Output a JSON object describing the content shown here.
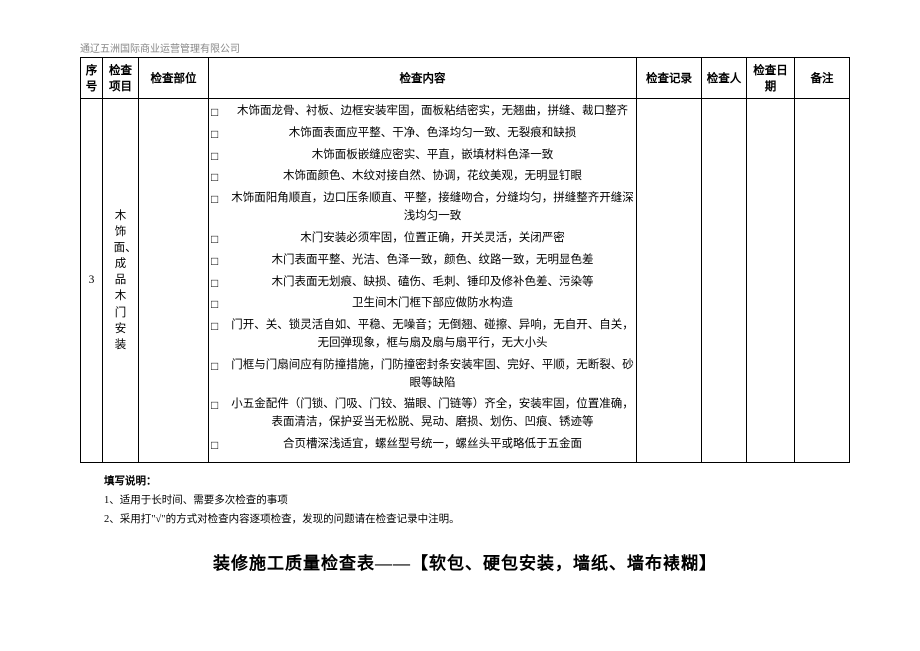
{
  "company": "通辽五洲国际商业运营管理有限公司",
  "headers": {
    "seq": "序号",
    "item": "检查项目",
    "part": "检查部位",
    "content": "检查内容",
    "record": "检查记录",
    "inspector": "检查人",
    "date": "检查日期",
    "remark": "备注"
  },
  "row": {
    "seq": "3",
    "item": "木饰面、成品木门安装",
    "part": "",
    "record": "",
    "inspector": "",
    "date": "",
    "remark": "",
    "checks": [
      "木饰面龙骨、衬板、边框安装牢固，面板粘结密实，无翘曲，拼缝、裁口整齐",
      "木饰面表面应平整、干净、色泽均匀一致、无裂痕和缺损",
      "木饰面板嵌缝应密实、平直，嵌填材料色泽一致",
      "木饰面颜色、木纹对接自然、协调，花纹美观，无明显钉眼",
      "木饰面阳角顺直，边口压条顺直、平整，接缝吻合，分缝均匀，拼缝整齐开缝深浅均匀一致",
      "木门安装必须牢固，位置正确，开关灵活，关闭严密",
      "木门表面平整、光洁、色泽一致，颜色、纹路一致，无明显色差",
      "木门表面无划痕、缺损、磕伤、毛刺、锤印及修补色差、污染等",
      "卫生间木门框下部应做防水构造",
      "门开、关、锁灵活自如、平稳、无噪音；无倒翘、碰擦、异响，无自开、自关，无回弹现象，框与扇及扇与扇平行，无大小头",
      "门框与门扇间应有防撞措施，门防撞密封条安装牢固、完好、平顺，无断裂、砂眼等缺陷",
      "小五金配件（门锁、门吸、门铰、猫眼、门链等）齐全，安装牢固，位置准确，表面清洁，保护妥当无松脱、晃动、磨损、划伤、凹痕、锈迹等",
      "合页槽深浅适宜，螺丝型号统一，螺丝头平或略低于五金面"
    ]
  },
  "notesTitle": "填写说明：",
  "notes": [
    "1、适用于长时间、需要多次检查的事项",
    "2、采用打\"√\"的方式对检查内容逐项检查，发现的问题请在检查记录中注明。"
  ],
  "sectionTitle": "装修施工质量检查表——【软包、硬包安装，墙纸、墙布裱糊】"
}
